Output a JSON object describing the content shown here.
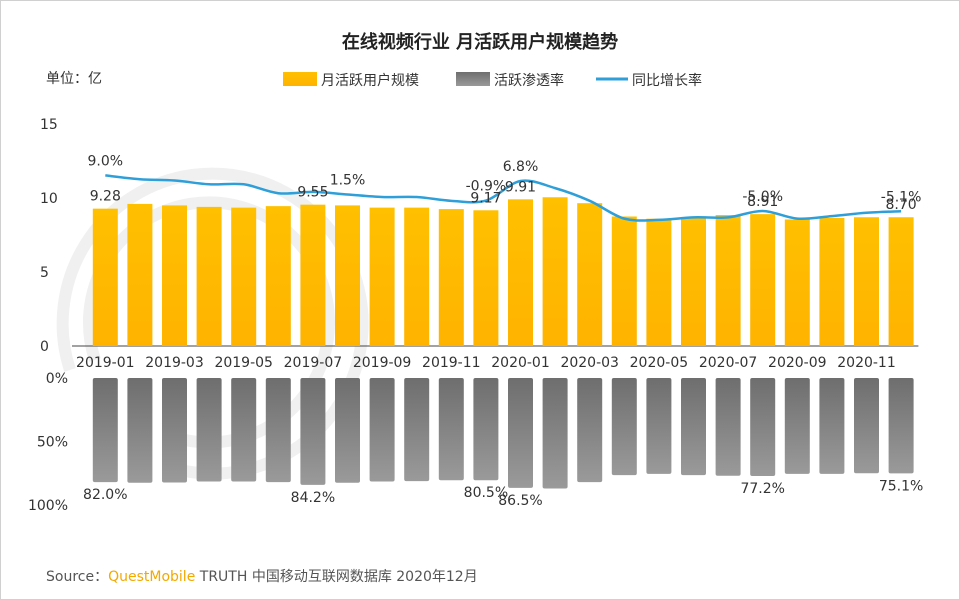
{
  "chart_data": {
    "type": "bar",
    "title": "在线视频行业 月活跃用户规模趋势",
    "unit_label": "单位：亿",
    "legend": [
      {
        "name": "月活跃用户规模",
        "color": "#ffc000",
        "kind": "bar"
      },
      {
        "name": "活跃渗透率",
        "color": "#7f7f7f",
        "kind": "bar"
      },
      {
        "name": "同比增长率",
        "color": "#2e9fd8",
        "kind": "line"
      }
    ],
    "categories": [
      "2019-01",
      "2019-02",
      "2019-03",
      "2019-04",
      "2019-05",
      "2019-06",
      "2019-07",
      "2019-08",
      "2019-09",
      "2019-10",
      "2019-11",
      "2019-12",
      "2020-01",
      "2020-02",
      "2020-03",
      "2020-04",
      "2020-05",
      "2020-06",
      "2020-07",
      "2020-08",
      "2020-09",
      "2020-10",
      "2020-11",
      "2020-12"
    ],
    "x_tick_labels": [
      "2019-01",
      "2019-03",
      "2019-05",
      "2019-07",
      "2019-09",
      "2019-11",
      "2020-01",
      "2020-03",
      "2020-05",
      "2020-07",
      "2020-09",
      "2020-11"
    ],
    "series": [
      {
        "name": "月活跃用户规模",
        "axis": "top",
        "ylim": [
          0,
          15
        ],
        "yticks": [
          "15",
          "10",
          "5",
          "0"
        ],
        "values": [
          9.28,
          9.6,
          9.5,
          9.4,
          9.35,
          9.45,
          9.55,
          9.5,
          9.35,
          9.35,
          9.25,
          9.17,
          9.91,
          10.05,
          9.65,
          8.75,
          8.6,
          8.7,
          8.85,
          8.91,
          8.55,
          8.65,
          8.7,
          8.7
        ],
        "labels": [
          "9.28",
          "",
          "",
          "",
          "",
          "",
          "9.55",
          "",
          "",
          "",
          "",
          "9.17",
          "9.91",
          "",
          "",
          "",
          "",
          "",
          "",
          "8.91",
          "",
          "",
          "",
          "8.70"
        ]
      },
      {
        "name": "活跃渗透率",
        "axis": "bottom",
        "ylim": [
          0,
          100
        ],
        "yticks": [
          "0%",
          "50%",
          "100%"
        ],
        "values": [
          82.0,
          82.5,
          82.3,
          81.5,
          81.5,
          82.0,
          84.2,
          82.5,
          81.5,
          81.2,
          80.5,
          80.5,
          86.5,
          87.0,
          82.0,
          76.5,
          75.5,
          76.5,
          77.0,
          77.2,
          75.5,
          75.5,
          75.0,
          75.1
        ],
        "labels": [
          "82.0%",
          "",
          "",
          "",
          "",
          "",
          "84.2%",
          "",
          "",
          "",
          "",
          "80.5%",
          "86.5%",
          "",
          "",
          "",
          "",
          "",
          "",
          "77.2%",
          "",
          "",
          "",
          "75.1%"
        ]
      },
      {
        "name": "同比增长率",
        "axis": "top-secondary",
        "ylim": [
          -40,
          30
        ],
        "values": [
          9.0,
          7.5,
          7.0,
          5.5,
          5.5,
          2.0,
          2.5,
          1.5,
          0.5,
          0.5,
          -1.0,
          -0.9,
          6.8,
          4.0,
          -1.0,
          -8.0,
          -8.5,
          -7.5,
          -7.5,
          -5.0,
          -8.0,
          -7.0,
          -5.7,
          -5.1
        ],
        "labels": [
          "9.0%",
          "",
          "",
          "",
          "",
          "",
          "",
          "1.5%",
          "",
          "",
          "",
          "-0.9%",
          "6.8%",
          "",
          "",
          "",
          "",
          "",
          "",
          "-5.0%",
          "",
          "",
          "",
          "-5.1%"
        ]
      }
    ]
  },
  "footer": {
    "source_prefix": "Source：",
    "brand": "QuestMobile",
    "source_rest": " TRUTH 中国移动互联网数据库 2020年12月"
  }
}
